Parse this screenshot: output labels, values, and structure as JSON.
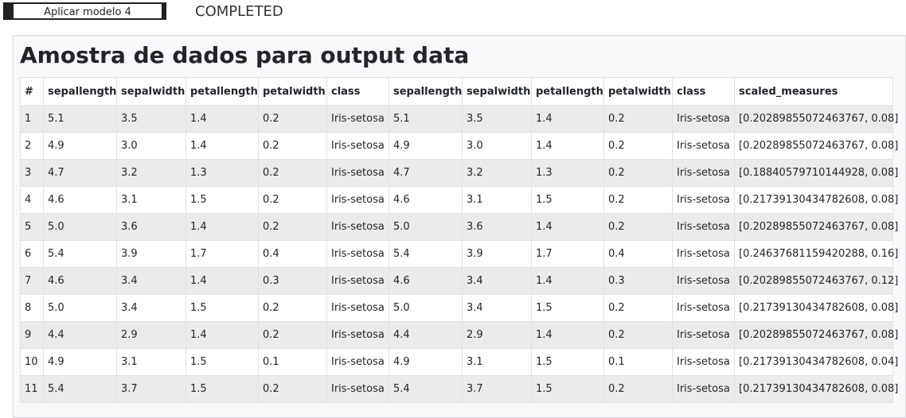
{
  "button": {
    "label": "Aplicar modelo 4"
  },
  "status": "COMPLETED",
  "panel": {
    "title": "Amostra de dados para output data"
  },
  "table": {
    "headers": [
      "#",
      "sepallength",
      "sepalwidth",
      "petallength",
      "petalwidth",
      "class",
      "sepallength",
      "sepalwidth",
      "petallength",
      "petalwidth",
      "class",
      "scaled_measures"
    ],
    "rows": [
      [
        "1",
        "5.1",
        "3.5",
        "1.4",
        "0.2",
        "Iris-setosa",
        "5.1",
        "3.5",
        "1.4",
        "0.2",
        "Iris-setosa",
        "[0.20289855072463767, 0.08]"
      ],
      [
        "2",
        "4.9",
        "3.0",
        "1.4",
        "0.2",
        "Iris-setosa",
        "4.9",
        "3.0",
        "1.4",
        "0.2",
        "Iris-setosa",
        "[0.20289855072463767, 0.08]"
      ],
      [
        "3",
        "4.7",
        "3.2",
        "1.3",
        "0.2",
        "Iris-setosa",
        "4.7",
        "3.2",
        "1.3",
        "0.2",
        "Iris-setosa",
        "[0.18840579710144928, 0.08]"
      ],
      [
        "4",
        "4.6",
        "3.1",
        "1.5",
        "0.2",
        "Iris-setosa",
        "4.6",
        "3.1",
        "1.5",
        "0.2",
        "Iris-setosa",
        "[0.21739130434782608, 0.08]"
      ],
      [
        "5",
        "5.0",
        "3.6",
        "1.4",
        "0.2",
        "Iris-setosa",
        "5.0",
        "3.6",
        "1.4",
        "0.2",
        "Iris-setosa",
        "[0.20289855072463767, 0.08]"
      ],
      [
        "6",
        "5.4",
        "3.9",
        "1.7",
        "0.4",
        "Iris-setosa",
        "5.4",
        "3.9",
        "1.7",
        "0.4",
        "Iris-setosa",
        "[0.24637681159420288, 0.16]"
      ],
      [
        "7",
        "4.6",
        "3.4",
        "1.4",
        "0.3",
        "Iris-setosa",
        "4.6",
        "3.4",
        "1.4",
        "0.3",
        "Iris-setosa",
        "[0.20289855072463767, 0.12]"
      ],
      [
        "8",
        "5.0",
        "3.4",
        "1.5",
        "0.2",
        "Iris-setosa",
        "5.0",
        "3.4",
        "1.5",
        "0.2",
        "Iris-setosa",
        "[0.21739130434782608, 0.08]"
      ],
      [
        "9",
        "4.4",
        "2.9",
        "1.4",
        "0.2",
        "Iris-setosa",
        "4.4",
        "2.9",
        "1.4",
        "0.2",
        "Iris-setosa",
        "[0.20289855072463767, 0.08]"
      ],
      [
        "10",
        "4.9",
        "3.1",
        "1.5",
        "0.1",
        "Iris-setosa",
        "4.9",
        "3.1",
        "1.5",
        "0.1",
        "Iris-setosa",
        "[0.21739130434782608, 0.04]"
      ],
      [
        "11",
        "5.4",
        "3.7",
        "1.5",
        "0.2",
        "Iris-setosa",
        "5.4",
        "3.7",
        "1.5",
        "0.2",
        "Iris-setosa",
        "[0.21739130434782608, 0.08]"
      ]
    ]
  }
}
